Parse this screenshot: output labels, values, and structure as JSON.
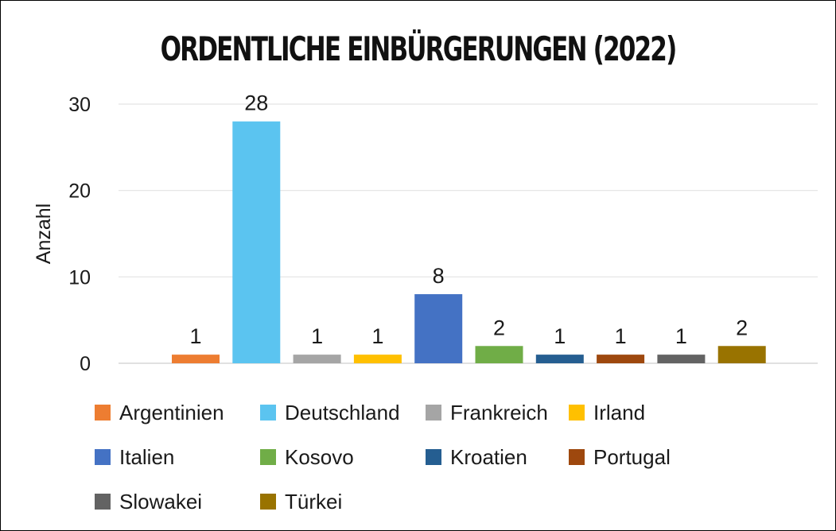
{
  "chart_data": {
    "type": "bar",
    "title": "ORDENTLICHE EINBÜRGERUNGEN (2022)",
    "ylabel": "Anzahl",
    "xlabel": "",
    "ylim": [
      0,
      30
    ],
    "yticks": [
      0,
      10,
      20,
      30
    ],
    "grid": true,
    "legend_position": "bottom",
    "categories": [
      "Argentinien",
      "Deutschland",
      "Frankreich",
      "Irland",
      "Italien",
      "Kosovo",
      "Kroatien",
      "Portugal",
      "Slowakei",
      "Türkei"
    ],
    "values": [
      1,
      28,
      1,
      1,
      8,
      2,
      1,
      1,
      1,
      2
    ],
    "colors": [
      "#ED7D31",
      "#5BC4F0",
      "#A5A5A5",
      "#FFC000",
      "#4472C4",
      "#70AD47",
      "#255E91",
      "#9E480E",
      "#636363",
      "#997300"
    ]
  }
}
